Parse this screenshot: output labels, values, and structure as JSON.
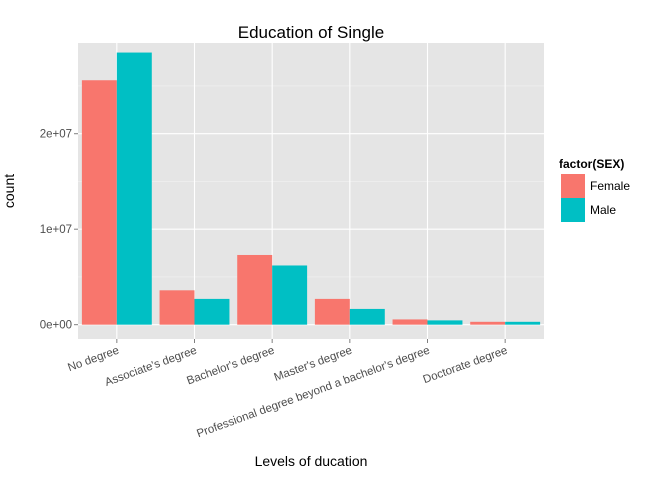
{
  "chart_data": {
    "type": "bar",
    "title": "Education of Single",
    "xlabel": "Levels of ducation",
    "ylabel": "count",
    "categories": [
      "No degree",
      "Associate's degree",
      "Bachelor's degree",
      "Master's degree",
      "Professional degree beyond a bachelor's degree",
      "Doctorate degree"
    ],
    "series": [
      {
        "name": "Female",
        "color": "#F8766D",
        "values": [
          25600000,
          3600000,
          7300000,
          2700000,
          550000,
          300000
        ]
      },
      {
        "name": "Male",
        "color": "#00BFC4",
        "values": [
          28500000,
          2700000,
          6200000,
          1650000,
          450000,
          300000
        ]
      }
    ],
    "ylim": [
      -1500000,
      29500000
    ],
    "yticks": [
      0,
      10000000,
      20000000
    ],
    "ytick_labels": [
      "0e+00",
      "1e+07",
      "2e+07"
    ],
    "legend": {
      "title": "factor(SEX)",
      "placement": "right"
    },
    "grid": true
  }
}
